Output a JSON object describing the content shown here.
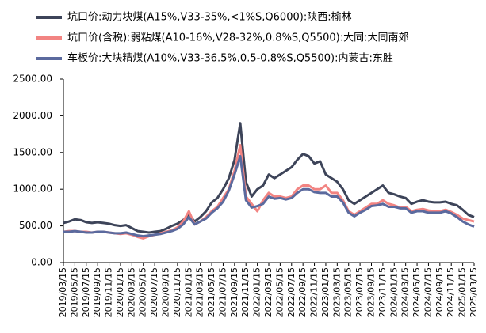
{
  "chart_data": {
    "type": "line",
    "categories": [
      "2019/03/15",
      null,
      "2019/05/15",
      null,
      "2019/07/15",
      null,
      "2019/09/15",
      null,
      "2019/11/15",
      null,
      "2020/01/15",
      null,
      "2020/03/15",
      null,
      "2020/05/15",
      null,
      "2020/07/15",
      null,
      "2020/09/15",
      null,
      "2020/11/15",
      null,
      "2021/01/15",
      null,
      "2021/03/15",
      null,
      "2021/05/15",
      null,
      "2021/07/15",
      null,
      "2021/09/15",
      null,
      "2021/11/15",
      null,
      "2022/01/15",
      null,
      "2022/03/15",
      null,
      "2022/05/15",
      null,
      "2022/07/15",
      null,
      "2022/09/15",
      null,
      "2022/11/15",
      null,
      "2023/01/15",
      null,
      "2023/03/15",
      null,
      "2023/05/15",
      null,
      "2023/07/15",
      null,
      "2023/09/15",
      null,
      "2023/11/15",
      null,
      "2024/01/15",
      null,
      "2024/03/15",
      null,
      "2024/05/15",
      null,
      "2024/07/15",
      null,
      "2024/09/15",
      null,
      "2024/11/15",
      null,
      "2025/01/15",
      null,
      "2025/03/15"
    ],
    "series": [
      {
        "name": "坑口价:动力块煤(A15%,V33-35%,<1%S,Q6000):陕西:榆林",
        "color": "#3d4459",
        "values": [
          540,
          560,
          590,
          580,
          550,
          540,
          550,
          540,
          530,
          510,
          500,
          510,
          470,
          430,
          420,
          410,
          420,
          430,
          460,
          500,
          530,
          580,
          650,
          560,
          620,
          700,
          820,
          880,
          1000,
          1150,
          1400,
          1900,
          1100,
          900,
          1000,
          1050,
          1200,
          1150,
          1200,
          1250,
          1300,
          1400,
          1480,
          1450,
          1350,
          1380,
          1200,
          1150,
          1100,
          1000,
          850,
          800,
          850,
          900,
          950,
          1000,
          1050,
          950,
          930,
          900,
          880,
          800,
          830,
          850,
          830,
          820,
          820,
          830,
          800,
          780,
          720,
          650,
          620
        ]
      },
      {
        "name": "坑口价(含税):弱粘煤(A10-16%,V28-32%,0.8%S,Q5500):大同:大同南郊",
        "color": "#f28482",
        "values": [
          420,
          430,
          430,
          420,
          420,
          410,
          420,
          420,
          410,
          400,
          390,
          400,
          380,
          350,
          330,
          360,
          380,
          400,
          420,
          440,
          480,
          560,
          700,
          520,
          560,
          620,
          700,
          760,
          880,
          1000,
          1250,
          1600,
          900,
          800,
          700,
          850,
          950,
          900,
          900,
          880,
          900,
          1000,
          1050,
          1050,
          1000,
          1000,
          1050,
          950,
          950,
          850,
          700,
          650,
          700,
          750,
          800,
          800,
          850,
          800,
          780,
          750,
          760,
          700,
          720,
          730,
          710,
          700,
          700,
          720,
          690,
          650,
          600,
          580,
          560
        ]
      },
      {
        "name": "车板价:大块精煤(A10%,V33-36.5%,0.5-0.8%S,Q5500):内蒙古:东胜",
        "color": "#5b6a9e",
        "values": [
          420,
          420,
          430,
          420,
          410,
          410,
          420,
          420,
          410,
          400,
          400,
          410,
          390,
          370,
          360,
          370,
          380,
          390,
          410,
          430,
          460,
          520,
          620,
          520,
          560,
          600,
          680,
          740,
          830,
          980,
          1200,
          1450,
          850,
          750,
          770,
          800,
          900,
          870,
          880,
          860,
          880,
          950,
          1000,
          1000,
          960,
          950,
          950,
          900,
          900,
          820,
          680,
          630,
          680,
          720,
          770,
          780,
          800,
          760,
          760,
          740,
          740,
          680,
          700,
          700,
          680,
          680,
          680,
          700,
          670,
          620,
          560,
          520,
          490
        ]
      }
    ],
    "ylim": [
      0,
      2500
    ],
    "yticks": [
      {
        "value": 0,
        "label": "0.00"
      },
      {
        "value": 500,
        "label": "500.00"
      },
      {
        "value": 1000,
        "label": "1000.00"
      },
      {
        "value": 1500,
        "label": "1500.00"
      },
      {
        "value": 2000,
        "label": "2000.00"
      },
      {
        "value": 2500,
        "label": "2500.00"
      }
    ]
  }
}
